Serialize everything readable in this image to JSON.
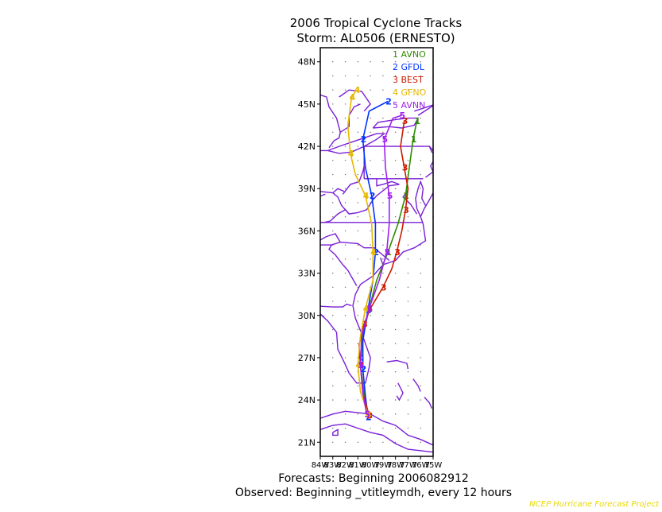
{
  "title": "2006 Tropical Cyclone Tracks",
  "subtitle": "Storm: AL0506 (ERNESTO)",
  "footer_forecast": "Forecasts: Beginning 2006082912",
  "footer_observed": "Observed: Beginning _vtitleymdh, every 12 hours",
  "credit": "NCEP Hurricane Forecast Project",
  "y_axis_labels": [
    "48N",
    "45N",
    "42N",
    "39N",
    "36N",
    "33N",
    "30N",
    "27N",
    "24N",
    "21N"
  ],
  "x_axis_labels": [
    "84W",
    "83W",
    "82W",
    "81W",
    "80W",
    "79W",
    "78W",
    "77W",
    "76W",
    "75W"
  ],
  "colors": {
    "avno": "#2e8b00",
    "gfdl": "#0033ff",
    "best": "#cc1a00",
    "gfno": "#e6b800",
    "avnn": "#a020f0",
    "coast": "#7a1fd6"
  },
  "chart_data": {
    "type": "line",
    "title": "2006 Tropical Cyclone Tracks",
    "subtitle": "Storm: AL0506 (ERNESTO)",
    "xlim": [
      -84,
      -75
    ],
    "ylim": [
      20,
      49
    ],
    "x_label_positions": [
      -84,
      -83,
      -82,
      -81,
      -80,
      -79,
      -78,
      -77,
      -76,
      -75
    ],
    "y_label_positions": [
      48,
      45,
      42,
      39,
      36,
      33,
      30,
      27,
      24,
      21
    ],
    "legend_position": "top-right",
    "grid": true,
    "series": [
      {
        "id": "avno",
        "legend": "1 AVNO",
        "marker": "1",
        "points": [
          [
            -80.2,
            23.0
          ],
          [
            -80.5,
            24.5
          ],
          [
            -80.8,
            26.5
          ],
          [
            -80.6,
            28.5
          ],
          [
            -80.1,
            30.5
          ],
          [
            -79.5,
            32.5
          ],
          [
            -78.6,
            34.5
          ],
          [
            -77.8,
            36.5
          ],
          [
            -77.2,
            38.5
          ],
          [
            -76.9,
            40.5
          ],
          [
            -76.6,
            42.5
          ],
          [
            -76.3,
            43.8
          ]
        ]
      },
      {
        "id": "gfdl",
        "legend": "2 GFDL",
        "marker": "2",
        "points": [
          [
            -80.2,
            22.8
          ],
          [
            -80.4,
            24.3
          ],
          [
            -80.6,
            26.2
          ],
          [
            -80.6,
            28.2
          ],
          [
            -80.2,
            30.4
          ],
          [
            -79.8,
            32.5
          ],
          [
            -79.6,
            34.5
          ],
          [
            -79.6,
            36.5
          ],
          [
            -79.9,
            38.5
          ],
          [
            -80.4,
            40.5
          ],
          [
            -80.6,
            42.5
          ],
          [
            -80.1,
            44.5
          ],
          [
            -78.6,
            45.2
          ]
        ]
      },
      {
        "id": "best",
        "legend": "3 BEST",
        "marker": "3",
        "points": [
          [
            -80.1,
            22.9
          ],
          [
            -80.6,
            24.5
          ],
          [
            -80.8,
            26.5
          ],
          [
            -80.9,
            27.9
          ],
          [
            -80.5,
            29.4
          ],
          [
            -80.0,
            30.5
          ],
          [
            -79.0,
            32.0
          ],
          [
            -78.3,
            33.3
          ],
          [
            -77.9,
            34.5
          ],
          [
            -77.5,
            36.0
          ],
          [
            -77.2,
            37.5
          ],
          [
            -77.0,
            39.0
          ],
          [
            -77.3,
            40.5
          ],
          [
            -77.6,
            42.0
          ],
          [
            -77.3,
            43.8
          ]
        ]
      },
      {
        "id": "gfno",
        "legend": "4 GFNO",
        "marker": "4",
        "points": [
          [
            -80.2,
            23.0
          ],
          [
            -80.8,
            24.6
          ],
          [
            -81.0,
            26.5
          ],
          [
            -80.8,
            28.5
          ],
          [
            -80.4,
            30.5
          ],
          [
            -79.8,
            32.5
          ],
          [
            -79.8,
            34.5
          ],
          [
            -79.9,
            36.5
          ],
          [
            -80.4,
            38.5
          ],
          [
            -81.2,
            40.0
          ],
          [
            -81.6,
            41.5
          ],
          [
            -81.8,
            43.5
          ],
          [
            -81.5,
            45.5
          ],
          [
            -81.1,
            46.0
          ]
        ]
      },
      {
        "id": "avnn",
        "legend": "5 AVNN",
        "marker": "5",
        "points": [
          [
            -80.3,
            23.0
          ],
          [
            -80.6,
            24.5
          ],
          [
            -80.8,
            26.5
          ],
          [
            -80.7,
            28.5
          ],
          [
            -80.1,
            30.5
          ],
          [
            -79.3,
            32.5
          ],
          [
            -78.7,
            34.5
          ],
          [
            -78.5,
            36.5
          ],
          [
            -78.5,
            38.5
          ],
          [
            -78.8,
            40.5
          ],
          [
            -78.9,
            42.5
          ],
          [
            -78.2,
            44.0
          ],
          [
            -77.5,
            44.2
          ]
        ]
      }
    ]
  }
}
